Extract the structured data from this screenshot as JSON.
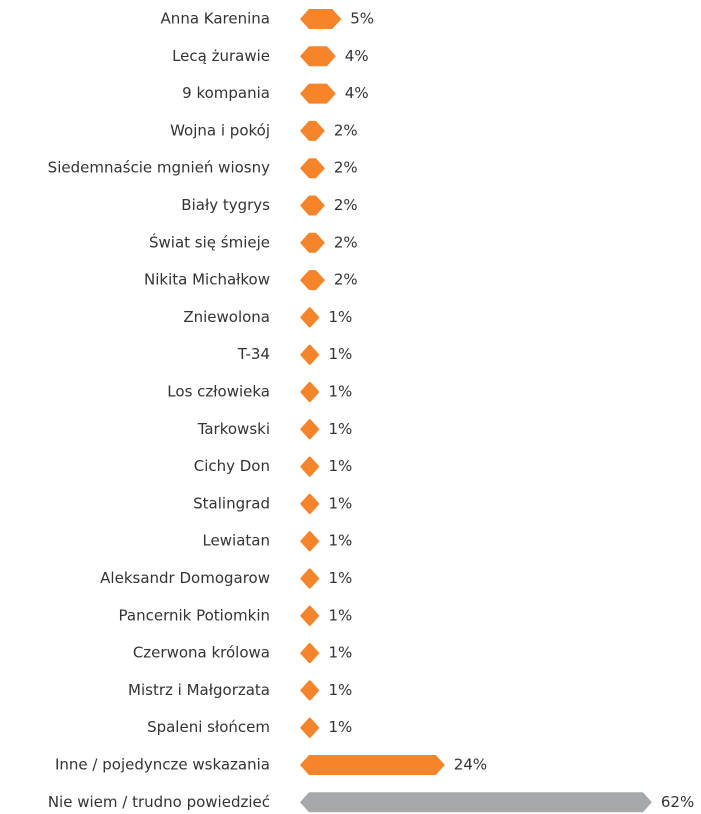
{
  "chart_data": {
    "type": "hbar",
    "categories": [
      "Anna Karenina",
      "Lecą żurawie",
      "9 kompania",
      "Wojna i pokój",
      "Siedemnaście mgnień wiosny",
      "Biały tygrys",
      "Świat się śmieje",
      "Nikita Michałkow",
      "Zniewolona",
      "T-34",
      "Los człowieka",
      "Tarkowski",
      "Cichy Don",
      "Stalingrad",
      "Lewiatan",
      "Aleksandr Domogarow",
      "Pancernik Potiomkin",
      "Czerwona królowa",
      "Mistrz i Małgorzata",
      "Spaleni słońcem",
      "Inne / pojedyncze wskazania",
      "Nie wiem / trudno powiedzieć"
    ],
    "values": [
      5,
      4,
      4,
      2,
      2,
      2,
      2,
      2,
      1,
      1,
      1,
      1,
      1,
      1,
      1,
      1,
      1,
      1,
      1,
      1,
      24,
      62
    ],
    "value_labels": [
      "5%",
      "4%",
      "4%",
      "2%",
      "2%",
      "2%",
      "2%",
      "2%",
      "1%",
      "1%",
      "1%",
      "1%",
      "1%",
      "1%",
      "1%",
      "1%",
      "1%",
      "1%",
      "1%",
      "1%",
      "24%",
      "62%"
    ],
    "colors": [
      "#f5842a",
      "#f5842a",
      "#f5842a",
      "#f5842a",
      "#f5842a",
      "#f5842a",
      "#f5842a",
      "#f5842a",
      "#f5842a",
      "#f5842a",
      "#f5842a",
      "#f5842a",
      "#f5842a",
      "#f5842a",
      "#f5842a",
      "#f5842a",
      "#f5842a",
      "#f5842a",
      "#f5842a",
      "#f5842a",
      "#f5842a",
      "#a7a8aa"
    ]
  }
}
